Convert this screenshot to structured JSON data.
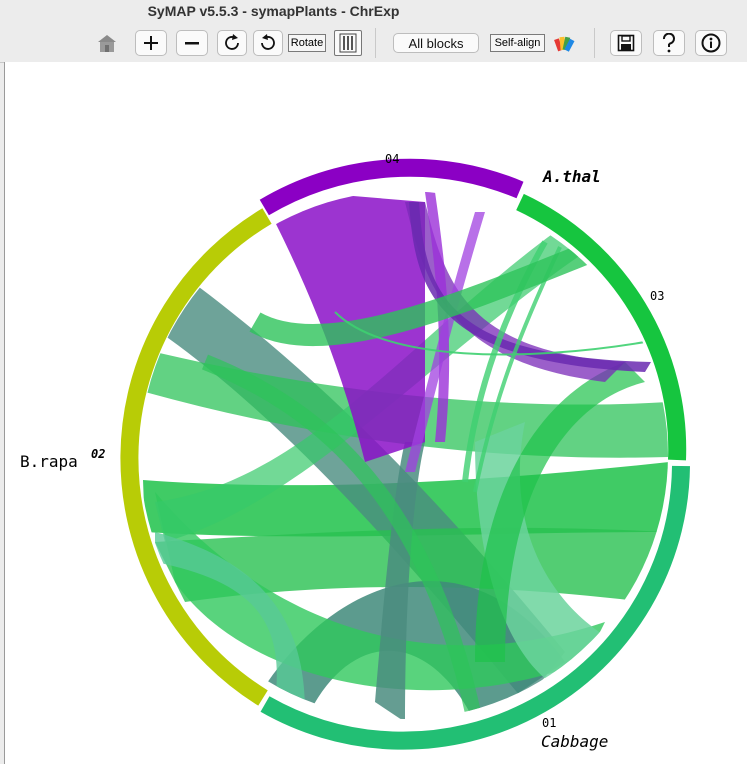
{
  "window": {
    "title": "SyMAP v5.5.3 - symapPlants - ChrExp"
  },
  "toolbar": {
    "home_icon": "home-icon",
    "zoom_in_icon": "plus-icon",
    "zoom_out_icon": "minus-icon",
    "rotate_cw_icon": "rotate-clockwise-icon",
    "rotate_ccw_icon": "rotate-counterclockwise-icon",
    "rotate_label": "Rotate",
    "block_toggle_icon": "blocks-toggle-icon",
    "all_blocks_label": "All blocks",
    "self_align_label": "Self-align",
    "palette_icon": "color-palette-icon",
    "save_icon": "save-icon",
    "help_icon": "help-icon",
    "info_icon": "info-icon"
  },
  "chart": {
    "chromosomes": [
      {
        "label": "04",
        "color": "#8b00c4"
      },
      {
        "label": "03",
        "color": "#16c53f"
      },
      {
        "label": "01",
        "color": "#22bf74"
      },
      {
        "label": "02",
        "color": "#b8cc06"
      }
    ],
    "species": {
      "athal": "A.thal",
      "brapa": "B.rapa",
      "cabbage": "Cabbage"
    }
  }
}
